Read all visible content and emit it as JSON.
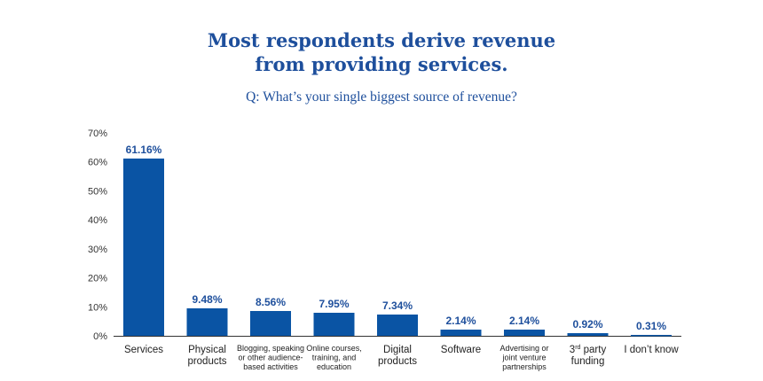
{
  "heading": {
    "line1": "Most respondents derive revenue",
    "line2": "from providing services."
  },
  "question": "Q: What’s your single biggest source of revenue?",
  "colors": {
    "bar": "#0a54a4",
    "title": "#1e4f9c",
    "axis": "#333333"
  },
  "chart_data": {
    "type": "bar",
    "title": "Most respondents derive revenue from providing services.",
    "subtitle": "Q: What’s your single biggest source of revenue?",
    "xlabel": "",
    "ylabel": "",
    "ylim": [
      0,
      70
    ],
    "yticks": [
      "0%",
      "10%",
      "20%",
      "30%",
      "40%",
      "50%",
      "60%",
      "70%"
    ],
    "grid": false,
    "categories": [
      {
        "lines": [
          "Services"
        ],
        "size": "big"
      },
      {
        "lines": [
          "Physical",
          "products"
        ],
        "size": "big"
      },
      {
        "lines": [
          "Blogging, speaking",
          "or other audience-",
          "based activities"
        ],
        "size": "small"
      },
      {
        "lines": [
          "Online courses,",
          "training, and",
          "education"
        ],
        "size": "small"
      },
      {
        "lines": [
          "Digital",
          "products"
        ],
        "size": "big"
      },
      {
        "lines": [
          "Software"
        ],
        "size": "big"
      },
      {
        "lines": [
          "Advertising or",
          "joint venture",
          "partnerships"
        ],
        "size": "small"
      },
      {
        "lines": [
          "3rd party",
          "funding"
        ],
        "size": "big"
      },
      {
        "lines": [
          "I don’t know"
        ],
        "size": "big"
      }
    ],
    "values": [
      61.16,
      9.48,
      8.56,
      7.95,
      7.34,
      2.14,
      2.14,
      0.92,
      0.31
    ],
    "data_labels": [
      "61.16%",
      "9.48%",
      "8.56%",
      "7.95%",
      "7.34%",
      "2.14%",
      "2.14%",
      "0.92%",
      "0.31%"
    ]
  }
}
